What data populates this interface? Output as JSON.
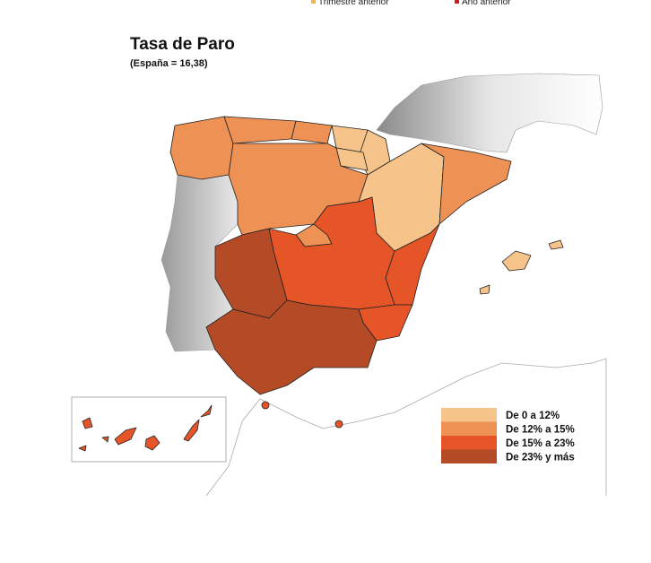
{
  "top_legend": [
    {
      "label": "Trimestre anterior",
      "color": "#f3b74a"
    },
    {
      "label": "Año anterior",
      "color": "#d41c1c"
    }
  ],
  "header": {
    "title": "Tasa de Paro",
    "subtitle": "(España = 16,38)"
  },
  "legend": [
    {
      "label": "De 0 a 12%",
      "color": "#f6c48a"
    },
    {
      "label": "De 12% a 15%",
      "color": "#ee9155"
    },
    {
      "label": "De 15% a 23%",
      "color": "#e55527"
    },
    {
      "label": "De 23% y más",
      "color": "#b44a26"
    }
  ]
}
